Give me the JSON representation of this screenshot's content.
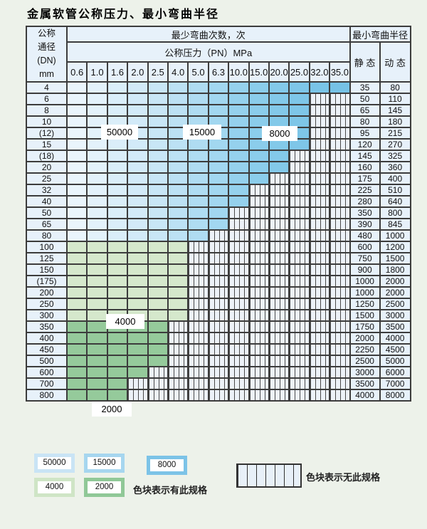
{
  "title": "金属软管公称压力、最小弯曲半径",
  "table": {
    "dn_header_lines": [
      "公称",
      "通径",
      "(DN)",
      "mm"
    ],
    "cycles_header": "最少弯曲次数，次",
    "pressure_header": "公称压力（PN）MPa",
    "radius_header": "最小弯曲半径",
    "static_header": "静 态",
    "dynamic_header": "动 态",
    "pressures": [
      "0.6",
      "1.0",
      "1.6",
      "2.0",
      "2.5",
      "4.0",
      "5.0",
      "6.3",
      "10.0",
      "15.0",
      "20.0",
      "25.0",
      "32.0",
      "35.0"
    ],
    "rows": [
      {
        "dn": "4",
        "zone": "blue",
        "last_col": 14,
        "max_pn": "35.0",
        "static": "35",
        "dynamic": "80"
      },
      {
        "dn": "6",
        "zone": "blue",
        "last_col": 12,
        "max_pn": "25.0",
        "static": "50",
        "dynamic": "110"
      },
      {
        "dn": "8",
        "zone": "blue",
        "last_col": 12,
        "max_pn": "25.0",
        "static": "65",
        "dynamic": "145"
      },
      {
        "dn": "10",
        "zone": "blue",
        "last_col": 12,
        "max_pn": "25.0",
        "static": "80",
        "dynamic": "180"
      },
      {
        "dn": "(12)",
        "zone": "blue",
        "last_col": 12,
        "max_pn": "25.0",
        "static": "95",
        "dynamic": "215"
      },
      {
        "dn": "15",
        "zone": "blue",
        "last_col": 12,
        "max_pn": "25.0",
        "static": "120",
        "dynamic": "270"
      },
      {
        "dn": "(18)",
        "zone": "blue",
        "last_col": 11,
        "max_pn": "20.0",
        "static": "145",
        "dynamic": "325"
      },
      {
        "dn": "20",
        "zone": "blue",
        "last_col": 11,
        "max_pn": "20.0",
        "static": "160",
        "dynamic": "360"
      },
      {
        "dn": "25",
        "zone": "blue",
        "last_col": 10,
        "max_pn": "15.0",
        "static": "175",
        "dynamic": "400"
      },
      {
        "dn": "32",
        "zone": "blue",
        "last_col": 9,
        "max_pn": "10.0",
        "static": "225",
        "dynamic": "510"
      },
      {
        "dn": "40",
        "zone": "blue",
        "last_col": 9,
        "max_pn": "10.0",
        "static": "280",
        "dynamic": "640"
      },
      {
        "dn": "50",
        "zone": "blue",
        "last_col": 8,
        "max_pn": "6.3",
        "static": "350",
        "dynamic": "800"
      },
      {
        "dn": "65",
        "zone": "blue",
        "last_col": 8,
        "max_pn": "6.3",
        "static": "390",
        "dynamic": "845"
      },
      {
        "dn": "80",
        "zone": "blue",
        "last_col": 7,
        "max_pn": "5.0",
        "static": "480",
        "dynamic": "1000"
      },
      {
        "dn": "100",
        "zone": "green4000",
        "last_col": 6,
        "max_pn": "4.0",
        "static": "600",
        "dynamic": "1200"
      },
      {
        "dn": "125",
        "zone": "green4000",
        "last_col": 6,
        "max_pn": "4.0",
        "static": "750",
        "dynamic": "1500"
      },
      {
        "dn": "150",
        "zone": "green4000",
        "last_col": 6,
        "max_pn": "4.0",
        "static": "900",
        "dynamic": "1800"
      },
      {
        "dn": "(175)",
        "zone": "green4000",
        "last_col": 6,
        "max_pn": "4.0",
        "static": "1000",
        "dynamic": "2000"
      },
      {
        "dn": "200",
        "zone": "green4000",
        "last_col": 6,
        "max_pn": "4.0",
        "static": "1000",
        "dynamic": "2000"
      },
      {
        "dn": "250",
        "zone": "green4000",
        "last_col": 6,
        "max_pn": "4.0",
        "static": "1250",
        "dynamic": "2500"
      },
      {
        "dn": "300",
        "zone": "green4000",
        "last_col": 6,
        "max_pn": "4.0",
        "static": "1500",
        "dynamic": "3000"
      },
      {
        "dn": "350",
        "zone": "green2000",
        "last_col": 5,
        "max_pn": "2.5",
        "static": "1750",
        "dynamic": "3500"
      },
      {
        "dn": "400",
        "zone": "green2000",
        "last_col": 5,
        "max_pn": "2.5",
        "static": "2000",
        "dynamic": "4000"
      },
      {
        "dn": "450",
        "zone": "green2000",
        "last_col": 5,
        "max_pn": "2.5",
        "static": "2250",
        "dynamic": "4500"
      },
      {
        "dn": "500",
        "zone": "green2000",
        "last_col": 5,
        "max_pn": "2.5",
        "static": "2500",
        "dynamic": "5000"
      },
      {
        "dn": "600",
        "zone": "green2000",
        "last_col": 4,
        "max_pn": "2.0",
        "static": "3000",
        "dynamic": "6000"
      },
      {
        "dn": "700",
        "zone": "green2000",
        "last_col": 3,
        "max_pn": "1.6",
        "static": "3500",
        "dynamic": "7000"
      },
      {
        "dn": "800",
        "zone": "green2000",
        "last_col": 3,
        "max_pn": "1.6",
        "static": "4000",
        "dynamic": "8000"
      }
    ]
  },
  "zone_labels": {
    "z50000": "50000",
    "z15000": "15000",
    "z8000": "8000",
    "z4000": "4000",
    "z2000": "2000"
  },
  "legend": {
    "swatches": [
      {
        "label": "50000"
      },
      {
        "label": "15000"
      },
      {
        "label": "8000"
      },
      {
        "label": "4000"
      },
      {
        "label": "2000"
      }
    ],
    "available_caption": "色块表示有此规格",
    "unavailable_caption": "色块表示无此规格"
  },
  "colors": {
    "blue_columns": [
      "#eaf5fc",
      "#e3f2fb",
      "#daeef9",
      "#d2eaf8",
      "#c8e6f6",
      "#bce1f4",
      "#afdcf2",
      "#a2d7f0",
      "#95d1ed",
      "#8bcdeb",
      "#83c9e9",
      "#7ec6e8",
      "#79c4e7",
      "#76c2e6"
    ],
    "green_4000": "#d5e8cc",
    "green_2000": "#95ca9b",
    "legend_50000": "#c9e4f5",
    "legend_15000": "#a6d6ef",
    "legend_8000": "#7cc3e7",
    "legend_4000": "#cfe5c6",
    "legend_2000": "#90c897",
    "hatch_bg": "#edf2f8",
    "grid": "#3c3c3c",
    "header_bg": "#e7f1fa",
    "page_bg": "#edf2ea"
  }
}
